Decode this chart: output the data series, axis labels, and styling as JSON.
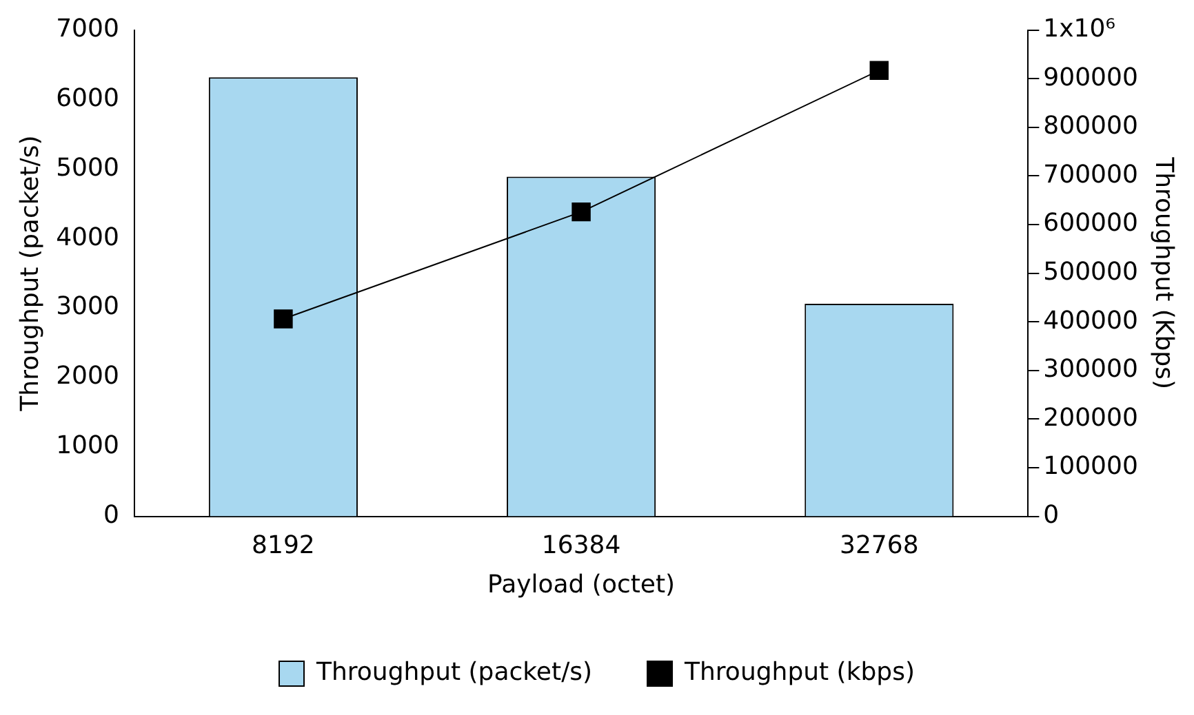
{
  "chart_data": {
    "type": "bar",
    "xlabel": "Payload (octet)",
    "ylabel": "Throughput (packet/s)",
    "y2label": "Throughput (Kbps)",
    "categories": [
      "8192",
      "16384",
      "32768"
    ],
    "series": [
      {
        "name": "Throughput (packet/s)",
        "color": "#a8d8f0",
        "values": [
          6320,
          4890,
          3060
        ]
      },
      {
        "name": "Throughput (kbps)",
        "type": "line",
        "axis": "y2",
        "color": "#000000",
        "marker": "square",
        "values": [
          406000,
          626000,
          917000
        ]
      }
    ],
    "ylim": [
      0,
      7000
    ],
    "yticks": [
      0,
      1000,
      2000,
      3000,
      4000,
      5000,
      6000,
      7000
    ],
    "y2lim": [
      0,
      1000000
    ],
    "y2ticks": [
      0,
      100000,
      200000,
      300000,
      400000,
      500000,
      600000,
      700000,
      800000,
      900000,
      {
        "value": 1000000,
        "label": "1x10⁶"
      }
    ],
    "grid": false,
    "legend": "bottom"
  }
}
